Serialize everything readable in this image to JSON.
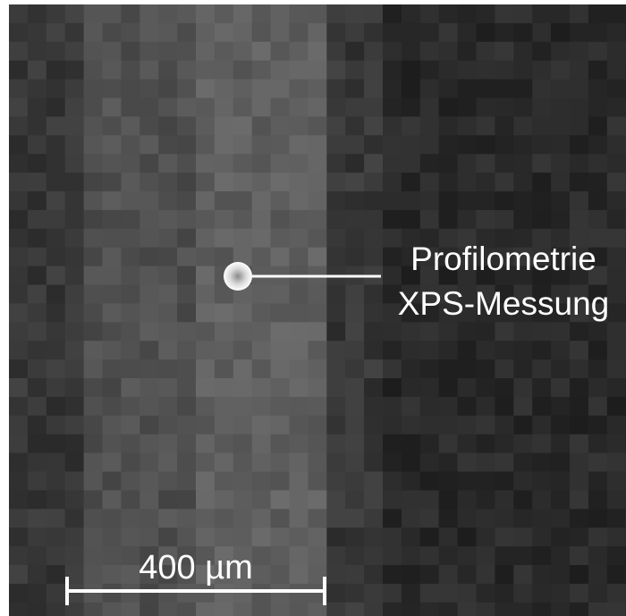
{
  "annotation": {
    "lines": [
      "Profilometrie",
      "XPS-Messung"
    ]
  },
  "scale_bar": {
    "label": "400 µm"
  }
}
